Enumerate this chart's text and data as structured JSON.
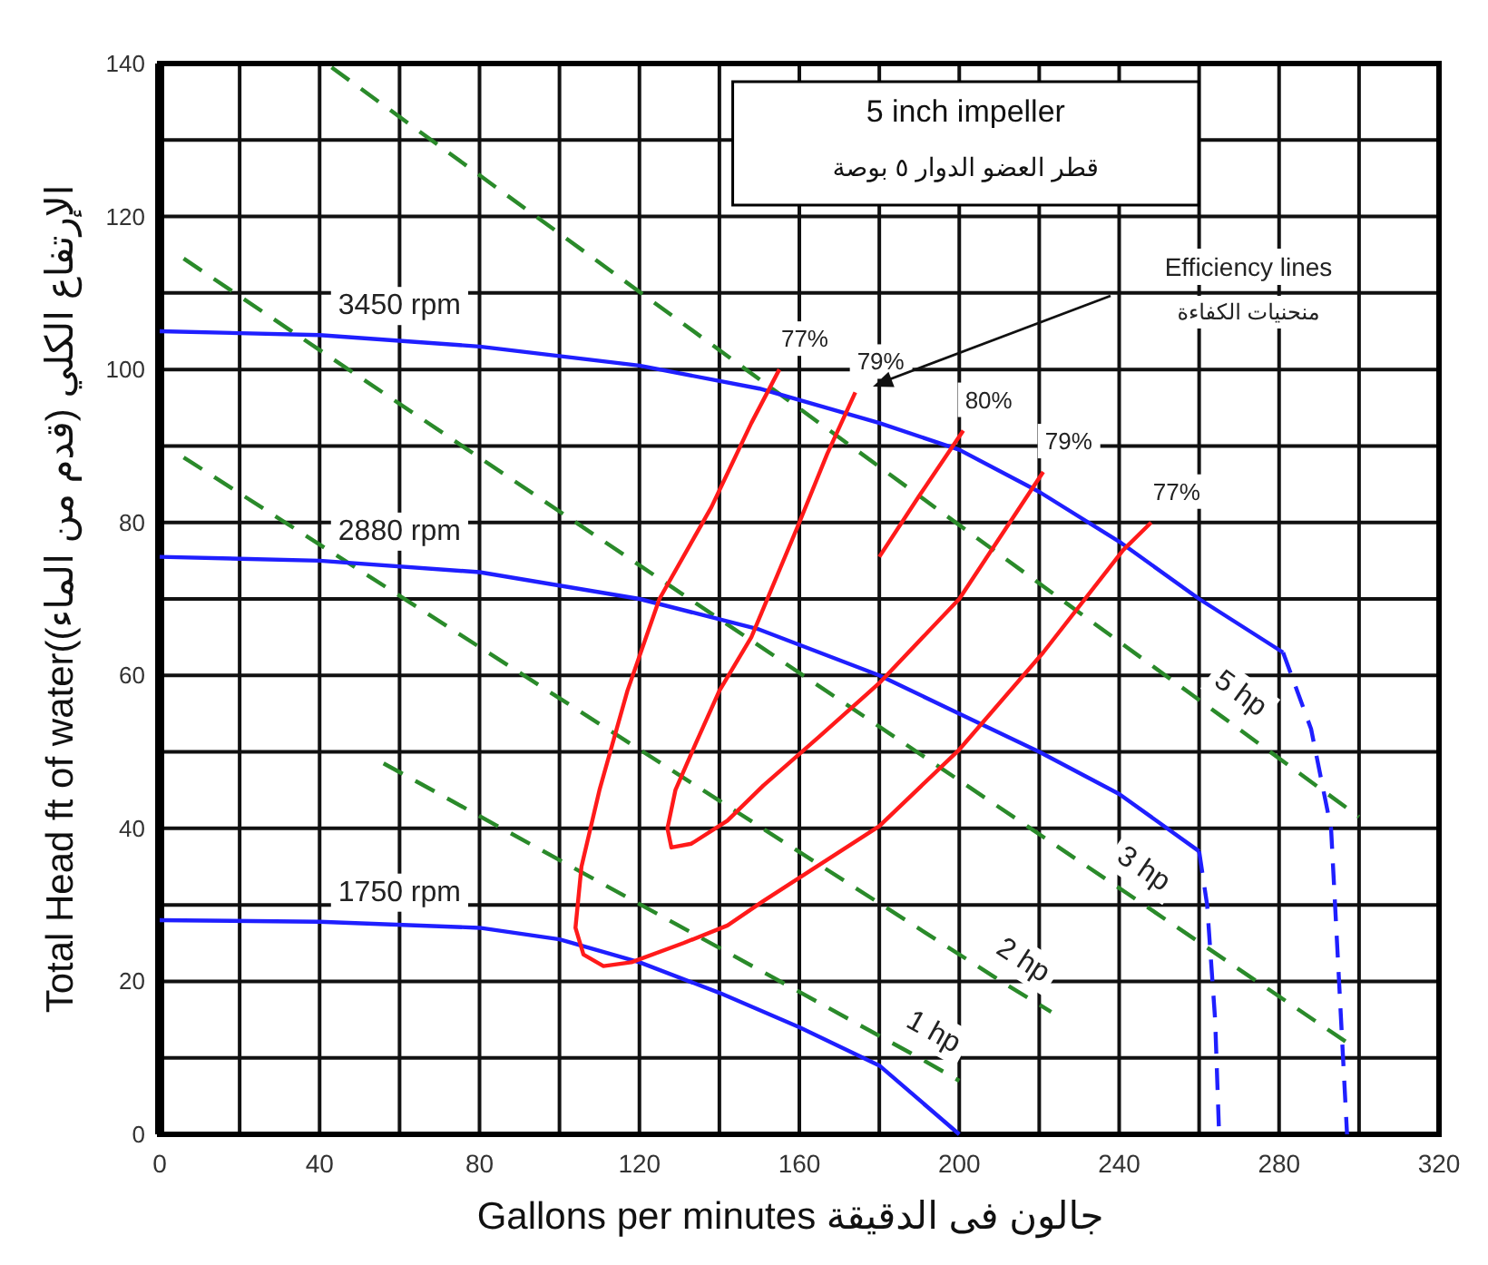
{
  "chart_data": {
    "type": "line",
    "title": "5 inch impeller",
    "subtitle": "قطر العضو الدوار ٥ بوصة",
    "xlabel": "Gallons per minutes جالون فى الدقيقة",
    "ylabel": "Total Head ft of water(الإرتفاع الكلي (قدم من الماء)",
    "xlim": [
      0,
      320
    ],
    "xticks": [
      0,
      {
        "value": 20,
        "label": null
      },
      40,
      {
        "value": 60,
        "label": null
      },
      80,
      {
        "value": 100,
        "label": null
      },
      120,
      {
        "value": 140,
        "label": null
      },
      160,
      {
        "value": 180,
        "label": null
      },
      200,
      {
        "value": 220,
        "label": null
      },
      240,
      {
        "value": 260,
        "label": null
      },
      280,
      {
        "value": 300,
        "label": null
      },
      320
    ],
    "ylim": [
      0,
      140
    ],
    "yticks": [
      0,
      {
        "value": 10,
        "label": null
      },
      20,
      {
        "value": 30,
        "label": null
      },
      40,
      {
        "value": 50,
        "label": null
      },
      60,
      {
        "value": 70,
        "label": null
      },
      80,
      {
        "value": 90,
        "label": null
      },
      100,
      {
        "value": 110,
        "label": null
      },
      120,
      {
        "value": 130,
        "label": null
      },
      140
    ],
    "grid": true,
    "series": [
      {
        "name": "5 hp",
        "color": "#2a8a2a",
        "line_style": "dashed",
        "x": [
          43,
          266,
          300
        ],
        "values": [
          139.5,
          54.5,
          41.5
        ]
      },
      {
        "name": "3 hp",
        "color": "#2a8a2a",
        "line_style": "dashed",
        "x": [
          6,
          242,
          297
        ],
        "values": [
          114.5,
          31.5,
          12
        ]
      },
      {
        "name": "2 hp",
        "color": "#2a8a2a",
        "line_style": "dashed",
        "x": [
          6,
          212,
          223
        ],
        "values": [
          88.5,
          19.5,
          16
        ]
      },
      {
        "name": "1 hp",
        "color": "#2a8a2a",
        "line_style": "dashed",
        "x": [
          56,
          190,
          200
        ],
        "values": [
          48.5,
          10,
          7
        ]
      },
      {
        "name": "3450 rpm",
        "color": "#1f1fff",
        "line_style": "solid",
        "x": [
          0,
          40,
          80,
          120,
          150,
          180,
          200,
          220,
          240,
          260,
          281
        ],
        "values": [
          105,
          104.5,
          103,
          100.5,
          97.5,
          93,
          89.5,
          84,
          77.5,
          70,
          63
        ]
      },
      {
        "color": "#1f1fff",
        "line_style": "dashed",
        "x": [
          281,
          288,
          293,
          295,
          297
        ],
        "values": [
          63,
          53,
          40,
          20,
          0
        ]
      },
      {
        "name": "2880 rpm",
        "color": "#1f1fff",
        "line_style": "solid",
        "x": [
          0,
          40,
          80,
          120,
          150,
          180,
          200,
          220,
          240,
          260
        ],
        "values": [
          75.5,
          75,
          73.5,
          70,
          66,
          60,
          55,
          50,
          44.5,
          37
        ]
      },
      {
        "color": "#1f1fff",
        "line_style": "dashed",
        "x": [
          260,
          262,
          264,
          265
        ],
        "values": [
          37,
          30,
          15,
          0
        ]
      },
      {
        "name": "1750 rpm",
        "color": "#1f1fff",
        "line_style": "solid",
        "x": [
          0,
          40,
          80,
          100,
          120,
          140,
          160,
          180,
          200
        ],
        "values": [
          28,
          27.8,
          27,
          25.5,
          22.5,
          18.5,
          14,
          9,
          0
        ]
      },
      {
        "name": "77%",
        "color": "#ff1a1a",
        "line_style": "solid",
        "x": [
          155,
          148,
          138,
          125,
          117,
          110,
          105.5,
          104,
          106,
          111,
          118,
          131,
          142,
          151,
          180,
          200,
          221,
          241,
          248
        ],
        "values": [
          100,
          93,
          82,
          70,
          58,
          45,
          35,
          27,
          23.5,
          22,
          22.5,
          25,
          27.3,
          30.5,
          40.3,
          50.3,
          63,
          76.4,
          80
        ]
      },
      {
        "name": "79%",
        "color": "#ff1a1a",
        "line_style": "solid",
        "x": [
          174,
          167,
          160,
          148,
          140,
          134,
          129,
          127,
          128,
          133,
          142,
          151,
          165,
          180,
          200,
          221
        ],
        "values": [
          97,
          89,
          80,
          65,
          58,
          51,
          45,
          40,
          37.5,
          38,
          41,
          45.6,
          52,
          59,
          70,
          86.6
        ]
      },
      {
        "name": "80%",
        "color": "#ff1a1a",
        "line_style": "solid",
        "x": [
          180,
          190,
          201
        ],
        "values": [
          75.5,
          83.5,
          92
        ]
      }
    ],
    "annotations": [
      "Efficiency lines",
      "منحنيات الكفاءة"
    ]
  }
}
